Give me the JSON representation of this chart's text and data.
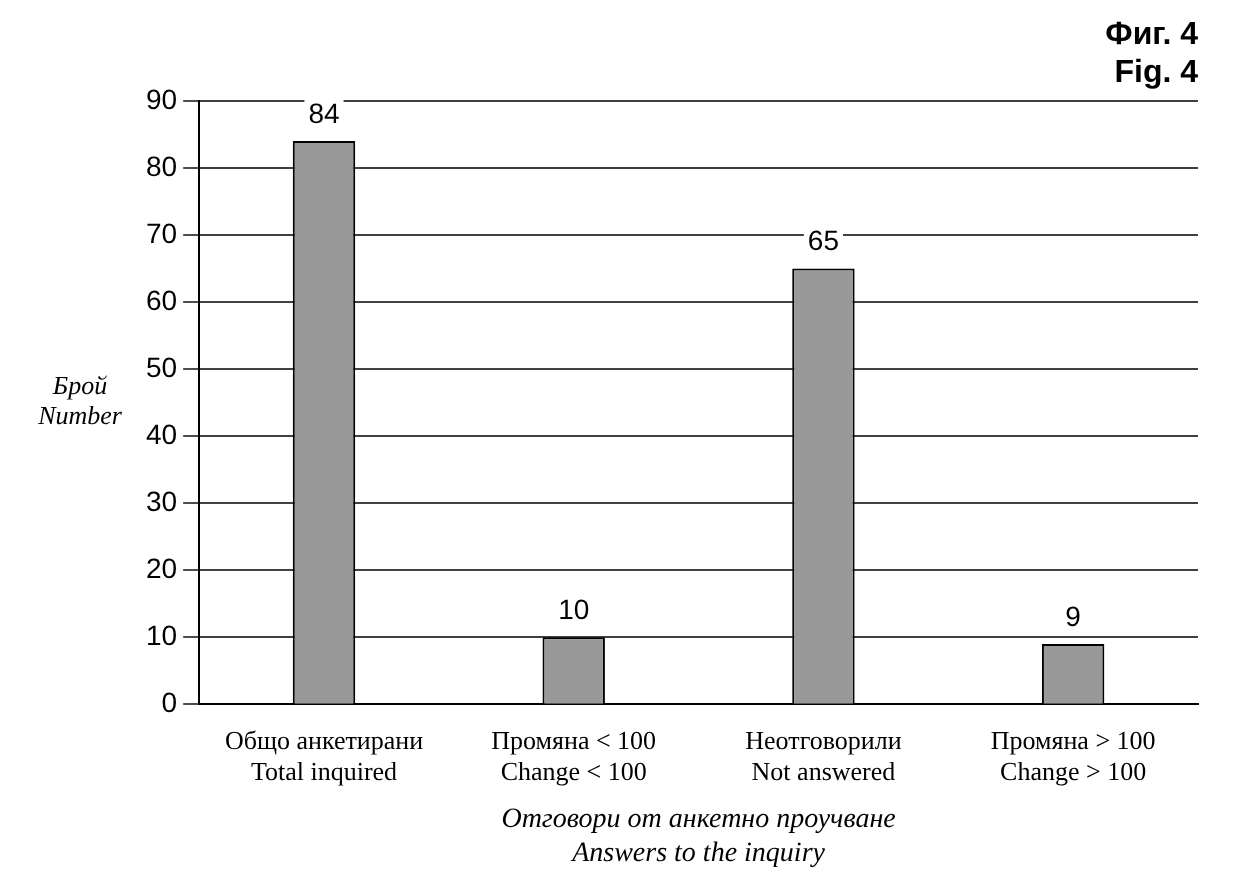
{
  "chart_data": {
    "type": "bar",
    "title": "Фиг. 4\nFig. 4",
    "ylabel": "Брой\nNumber",
    "xlabel": "Отговори от анкетно проучване\nAnswers to the inquiry",
    "categories": [
      "Общо анкетирани\nTotal inquired",
      "Промяна < 100\nChange < 100",
      "Неотговорили\nNot answered",
      "Промяна > 100\nChange > 100"
    ],
    "values": [
      84,
      10,
      65,
      9
    ],
    "color": "#999999",
    "ylim": [
      0,
      90
    ],
    "yticks": [
      0,
      10,
      20,
      30,
      40,
      50,
      60,
      70,
      80,
      90
    ],
    "grid": "y",
    "data_labels": true,
    "legend": false
  }
}
